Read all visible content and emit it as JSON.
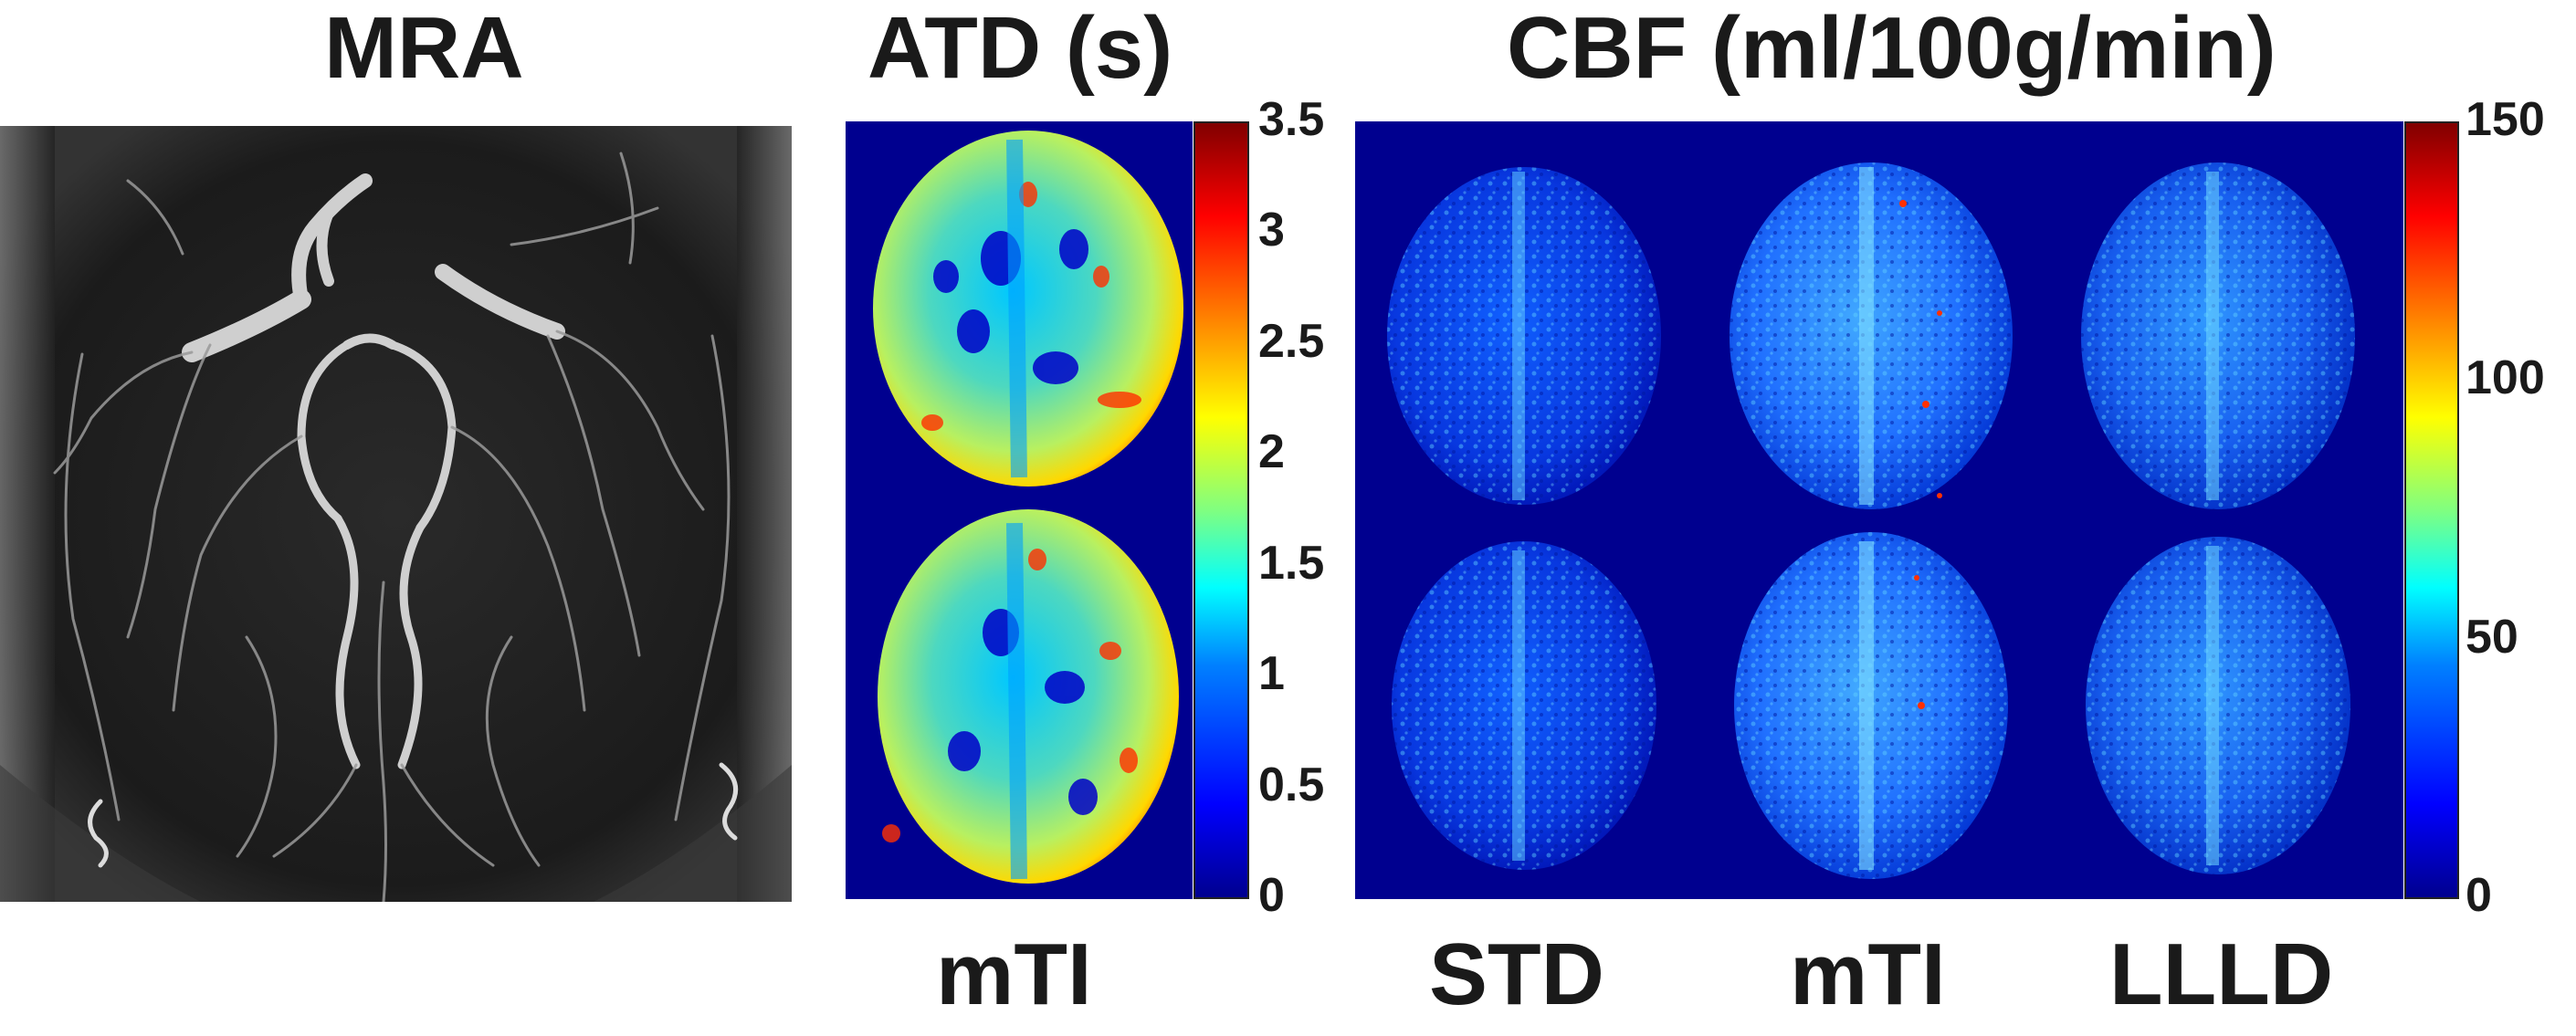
{
  "titles": {
    "mra": "MRA",
    "atd": "ATD (s)",
    "cbf": "CBF (ml/100g/min)"
  },
  "labels": {
    "atd": "mTI",
    "std": "STD",
    "mti": "mTI",
    "llld": "LLLD"
  },
  "atd_colorbar": {
    "ticks": [
      "3.5",
      "3",
      "2.5",
      "2",
      "1.5",
      "1",
      "0.5",
      "0"
    ],
    "range": [
      0,
      3.5
    ],
    "colormap": "jet"
  },
  "cbf_colorbar": {
    "ticks": [
      "150",
      "100",
      "50",
      "0"
    ],
    "range": [
      0,
      150
    ],
    "colormap": "jet"
  },
  "colors": {
    "jet_background": "#00008f",
    "text": "#1a1a1a",
    "mra_background": "#1c1c1c",
    "vessel": "#cfcfcf"
  }
}
